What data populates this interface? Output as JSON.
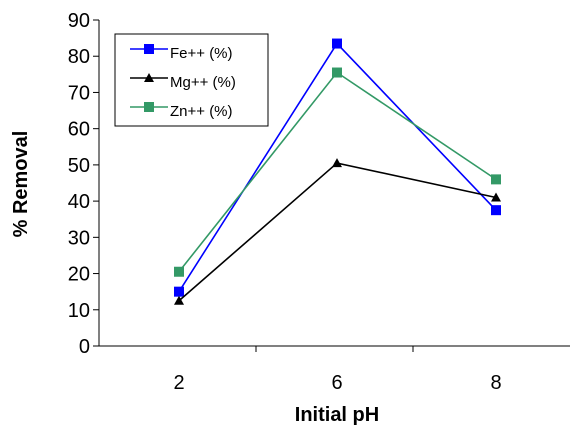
{
  "chart_data": {
    "type": "line",
    "categories": [
      "2",
      "6",
      "8"
    ],
    "xlabel": "Initial pH",
    "ylabel": "% Removal",
    "ylim": [
      0,
      90
    ],
    "yticks": [
      0,
      10,
      20,
      30,
      40,
      50,
      60,
      70,
      80,
      90
    ],
    "grid": false,
    "legend_position": "top-left",
    "series": [
      {
        "name": "Fe++ (%)",
        "values": [
          15,
          83.5,
          37.5
        ],
        "color": "#0000ff",
        "marker": "square"
      },
      {
        "name": "Mg++ (%)",
        "values": [
          12.5,
          50.5,
          41
        ],
        "color": "#000000",
        "marker": "triangle"
      },
      {
        "name": "Zn++ (%)",
        "values": [
          20.5,
          75.5,
          46
        ],
        "color": "#339966",
        "marker": "square"
      }
    ]
  }
}
